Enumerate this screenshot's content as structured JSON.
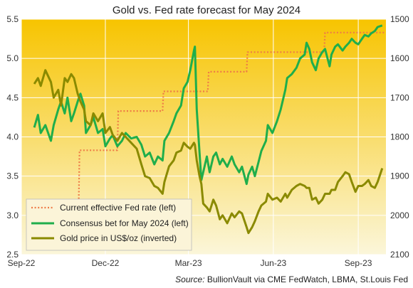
{
  "chart_data": {
    "type": "line",
    "title": "Gold vs. Fed rate forecast for May 2024",
    "source_label": "Source:",
    "source_text": "BullionVault via CME FedWatch, LBMA, St.Louis Fed",
    "x_tick_labels": [
      "Sep-22",
      "Dec-22",
      "Mar-23",
      "Jun-23",
      "Sep-23"
    ],
    "x_tick_dates": [
      "2022-09-01",
      "2022-12-01",
      "2023-03-01",
      "2023-06-01",
      "2023-09-01"
    ],
    "x_range": [
      "2022-09-01",
      "2023-10-01"
    ],
    "y_left": {
      "range": [
        2.5,
        5.5
      ],
      "ticks": [
        2.5,
        3.0,
        3.5,
        4.0,
        4.5,
        5.0,
        5.5
      ],
      "tick_labels": [
        "2.5",
        "3.0",
        "3.5",
        "4.0",
        "4.5",
        "5.0",
        "5.5"
      ]
    },
    "y_right": {
      "range": [
        2100,
        1500
      ],
      "inverted": true,
      "ticks": [
        1500,
        1600,
        1700,
        1800,
        1900,
        2000,
        2100
      ],
      "tick_labels": [
        "1500",
        "1600",
        "1700",
        "1800",
        "1900",
        "2000",
        "2100"
      ]
    },
    "grid": true,
    "legend_position": "bottom-left",
    "background": {
      "gradient_top": "#f7c400",
      "gradient_bottom": "#fbf6da"
    },
    "series": [
      {
        "name": "Current effective Fed rate (left)",
        "axis": "left",
        "style": "dotted",
        "color": "#ee7b47",
        "points": [
          [
            "2022-10-05",
            3.08
          ],
          [
            "2022-11-02",
            3.08
          ],
          [
            "2022-11-03",
            3.83
          ],
          [
            "2022-12-14",
            3.83
          ],
          [
            "2022-12-15",
            4.33
          ],
          [
            "2023-02-01",
            4.33
          ],
          [
            "2023-02-02",
            4.58
          ],
          [
            "2023-03-22",
            4.58
          ],
          [
            "2023-03-23",
            4.83
          ],
          [
            "2023-05-03",
            4.83
          ],
          [
            "2023-05-04",
            5.08
          ],
          [
            "2023-07-26",
            5.08
          ],
          [
            "2023-07-27",
            5.33
          ],
          [
            "2023-09-30",
            5.33
          ]
        ]
      },
      {
        "name": "Consensus bet for May 2024 (left)",
        "axis": "left",
        "style": "solid",
        "color": "#1fae4b",
        "points": [
          [
            "2022-09-15",
            4.12
          ],
          [
            "2022-09-19",
            4.28
          ],
          [
            "2022-09-22",
            4.05
          ],
          [
            "2022-09-27",
            4.15
          ],
          [
            "2022-10-03",
            3.95
          ],
          [
            "2022-10-06",
            4.15
          ],
          [
            "2022-10-11",
            4.35
          ],
          [
            "2022-10-14",
            4.45
          ],
          [
            "2022-10-18",
            4.3
          ],
          [
            "2022-10-21",
            4.5
          ],
          [
            "2022-10-25",
            4.2
          ],
          [
            "2022-10-28",
            4.3
          ],
          [
            "2022-11-01",
            4.45
          ],
          [
            "2022-11-04",
            4.55
          ],
          [
            "2022-11-08",
            4.4
          ],
          [
            "2022-11-10",
            4.05
          ],
          [
            "2022-11-15",
            4.15
          ],
          [
            "2022-11-18",
            4.25
          ],
          [
            "2022-11-23",
            4.05
          ],
          [
            "2022-11-28",
            4.1
          ],
          [
            "2022-12-01",
            3.88
          ],
          [
            "2022-12-06",
            3.98
          ],
          [
            "2022-12-09",
            4.02
          ],
          [
            "2022-12-14",
            3.88
          ],
          [
            "2022-12-19",
            3.95
          ],
          [
            "2022-12-23",
            4.05
          ],
          [
            "2022-12-29",
            3.98
          ],
          [
            "2023-01-04",
            4.0
          ],
          [
            "2023-01-09",
            3.9
          ],
          [
            "2023-01-13",
            3.75
          ],
          [
            "2023-01-18",
            3.8
          ],
          [
            "2023-01-23",
            3.65
          ],
          [
            "2023-01-27",
            3.75
          ],
          [
            "2023-02-01",
            3.7
          ],
          [
            "2023-02-03",
            3.95
          ],
          [
            "2023-02-08",
            4.05
          ],
          [
            "2023-02-13",
            4.2
          ],
          [
            "2023-02-16",
            4.3
          ],
          [
            "2023-02-21",
            4.4
          ],
          [
            "2023-02-24",
            4.62
          ],
          [
            "2023-02-28",
            4.7
          ],
          [
            "2023-03-03",
            4.85
          ],
          [
            "2023-03-07",
            5.1
          ],
          [
            "2023-03-08",
            5.15
          ],
          [
            "2023-03-10",
            4.35
          ],
          [
            "2023-03-13",
            3.8
          ],
          [
            "2023-03-15",
            3.45
          ],
          [
            "2023-03-17",
            3.55
          ],
          [
            "2023-03-21",
            3.75
          ],
          [
            "2023-03-24",
            3.55
          ],
          [
            "2023-03-28",
            3.75
          ],
          [
            "2023-03-31",
            3.8
          ],
          [
            "2023-04-04",
            3.65
          ],
          [
            "2023-04-07",
            3.72
          ],
          [
            "2023-04-12",
            3.62
          ],
          [
            "2023-04-17",
            3.75
          ],
          [
            "2023-04-20",
            3.65
          ],
          [
            "2023-04-25",
            3.55
          ],
          [
            "2023-04-28",
            3.62
          ],
          [
            "2023-05-03",
            3.4
          ],
          [
            "2023-05-05",
            3.52
          ],
          [
            "2023-05-09",
            3.62
          ],
          [
            "2023-05-12",
            3.5
          ],
          [
            "2023-05-16",
            3.68
          ],
          [
            "2023-05-19",
            3.82
          ],
          [
            "2023-05-24",
            3.95
          ],
          [
            "2023-05-26",
            4.15
          ],
          [
            "2023-05-31",
            4.05
          ],
          [
            "2023-06-05",
            4.2
          ],
          [
            "2023-06-09",
            4.35
          ],
          [
            "2023-06-14",
            4.6
          ],
          [
            "2023-06-16",
            4.75
          ],
          [
            "2023-06-21",
            4.8
          ],
          [
            "2023-06-26",
            4.88
          ],
          [
            "2023-06-30",
            5.0
          ],
          [
            "2023-07-05",
            5.05
          ],
          [
            "2023-07-07",
            5.2
          ],
          [
            "2023-07-10",
            5.12
          ],
          [
            "2023-07-13",
            4.95
          ],
          [
            "2023-07-17",
            4.85
          ],
          [
            "2023-07-20",
            5.0
          ],
          [
            "2023-07-24",
            5.08
          ],
          [
            "2023-07-27",
            5.12
          ],
          [
            "2023-08-01",
            4.9
          ],
          [
            "2023-08-03",
            5.05
          ],
          [
            "2023-08-07",
            5.15
          ],
          [
            "2023-08-10",
            5.18
          ],
          [
            "2023-08-15",
            5.1
          ],
          [
            "2023-08-18",
            5.15
          ],
          [
            "2023-08-22",
            5.2
          ],
          [
            "2023-08-25",
            5.25
          ],
          [
            "2023-08-29",
            5.2
          ],
          [
            "2023-09-01",
            5.18
          ],
          [
            "2023-09-05",
            5.25
          ],
          [
            "2023-09-08",
            5.3
          ],
          [
            "2023-09-12",
            5.28
          ],
          [
            "2023-09-15",
            5.32
          ],
          [
            "2023-09-19",
            5.35
          ],
          [
            "2023-09-22",
            5.4
          ],
          [
            "2023-09-27",
            5.42
          ]
        ]
      },
      {
        "name": "Gold price in US$/oz (inverted)",
        "axis": "right",
        "style": "solid",
        "color": "#8a8a00",
        "points": [
          [
            "2022-09-15",
            1665
          ],
          [
            "2022-09-19",
            1650
          ],
          [
            "2022-09-22",
            1670
          ],
          [
            "2022-09-27",
            1630
          ],
          [
            "2022-10-03",
            1660
          ],
          [
            "2022-10-06",
            1700
          ],
          [
            "2022-10-11",
            1680
          ],
          [
            "2022-10-14",
            1720
          ],
          [
            "2022-10-18",
            1650
          ],
          [
            "2022-10-21",
            1660
          ],
          [
            "2022-10-25",
            1640
          ],
          [
            "2022-10-28",
            1650
          ],
          [
            "2022-11-01",
            1690
          ],
          [
            "2022-11-04",
            1710
          ],
          [
            "2022-11-08",
            1730
          ],
          [
            "2022-11-10",
            1760
          ],
          [
            "2022-11-15",
            1770
          ],
          [
            "2022-11-18",
            1740
          ],
          [
            "2022-11-23",
            1760
          ],
          [
            "2022-11-28",
            1740
          ],
          [
            "2022-12-01",
            1790
          ],
          [
            "2022-12-06",
            1775
          ],
          [
            "2022-12-09",
            1795
          ],
          [
            "2022-12-14",
            1810
          ],
          [
            "2022-12-19",
            1790
          ],
          [
            "2022-12-23",
            1800
          ],
          [
            "2022-12-29",
            1815
          ],
          [
            "2023-01-04",
            1830
          ],
          [
            "2023-01-09",
            1870
          ],
          [
            "2023-01-13",
            1900
          ],
          [
            "2023-01-18",
            1905
          ],
          [
            "2023-01-23",
            1925
          ],
          [
            "2023-01-27",
            1930
          ],
          [
            "2023-02-01",
            1945
          ],
          [
            "2023-02-03",
            1915
          ],
          [
            "2023-02-08",
            1875
          ],
          [
            "2023-02-13",
            1860
          ],
          [
            "2023-02-16",
            1840
          ],
          [
            "2023-02-21",
            1835
          ],
          [
            "2023-02-24",
            1815
          ],
          [
            "2023-02-28",
            1825
          ],
          [
            "2023-03-03",
            1830
          ],
          [
            "2023-03-07",
            1815
          ],
          [
            "2023-03-08",
            1820
          ],
          [
            "2023-03-10",
            1860
          ],
          [
            "2023-03-13",
            1900
          ],
          [
            "2023-03-15",
            1920
          ],
          [
            "2023-03-17",
            1970
          ],
          [
            "2023-03-21",
            1980
          ],
          [
            "2023-03-24",
            1990
          ],
          [
            "2023-03-28",
            1960
          ],
          [
            "2023-03-31",
            1975
          ],
          [
            "2023-04-04",
            2010
          ],
          [
            "2023-04-07",
            2000
          ],
          [
            "2023-04-12",
            2020
          ],
          [
            "2023-04-17",
            1995
          ],
          [
            "2023-04-20",
            2005
          ],
          [
            "2023-04-25",
            1990
          ],
          [
            "2023-04-28",
            1995
          ],
          [
            "2023-05-03",
            2030
          ],
          [
            "2023-05-05",
            2045
          ],
          [
            "2023-05-09",
            2030
          ],
          [
            "2023-05-12",
            2015
          ],
          [
            "2023-05-16",
            1990
          ],
          [
            "2023-05-19",
            1975
          ],
          [
            "2023-05-24",
            1965
          ],
          [
            "2023-05-26",
            1945
          ],
          [
            "2023-05-31",
            1960
          ],
          [
            "2023-06-05",
            1955
          ],
          [
            "2023-06-09",
            1965
          ],
          [
            "2023-06-14",
            1945
          ],
          [
            "2023-06-16",
            1955
          ],
          [
            "2023-06-21",
            1935
          ],
          [
            "2023-06-26",
            1925
          ],
          [
            "2023-06-30",
            1920
          ],
          [
            "2023-07-05",
            1925
          ],
          [
            "2023-07-07",
            1930
          ],
          [
            "2023-07-10",
            1930
          ],
          [
            "2023-07-13",
            1960
          ],
          [
            "2023-07-17",
            1955
          ],
          [
            "2023-07-20",
            1970
          ],
          [
            "2023-07-24",
            1960
          ],
          [
            "2023-07-27",
            1945
          ],
          [
            "2023-08-01",
            1945
          ],
          [
            "2023-08-03",
            1935
          ],
          [
            "2023-08-07",
            1935
          ],
          [
            "2023-08-10",
            1915
          ],
          [
            "2023-08-15",
            1900
          ],
          [
            "2023-08-18",
            1890
          ],
          [
            "2023-08-22",
            1895
          ],
          [
            "2023-08-25",
            1915
          ],
          [
            "2023-08-29",
            1940
          ],
          [
            "2023-09-01",
            1925
          ],
          [
            "2023-09-05",
            1925
          ],
          [
            "2023-09-08",
            1920
          ],
          [
            "2023-09-12",
            1910
          ],
          [
            "2023-09-15",
            1925
          ],
          [
            "2023-09-19",
            1930
          ],
          [
            "2023-09-22",
            1915
          ],
          [
            "2023-09-27",
            1880
          ]
        ]
      }
    ]
  }
}
